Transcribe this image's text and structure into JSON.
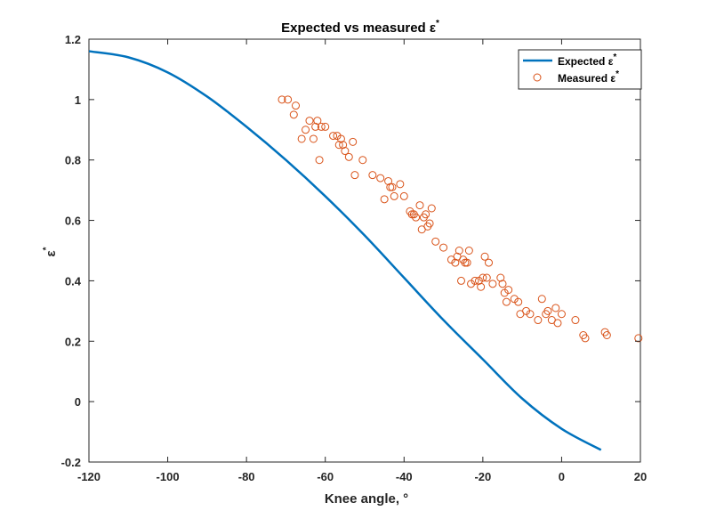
{
  "chart_data": {
    "type": "line+scatter",
    "title": "Expected vs measured ε",
    "title_superscript": "*",
    "xlabel": "Knee angle, °",
    "ylabel": "ε",
    "ylabel_superscript": "*",
    "xlim": [
      -120,
      20
    ],
    "ylim": [
      -0.2,
      1.2
    ],
    "xticks": [
      -120,
      -100,
      -80,
      -60,
      -40,
      -20,
      0,
      20
    ],
    "xtick_labels": [
      "-120",
      "-100",
      "-80",
      "-60",
      "-40",
      "-20",
      "0",
      "20"
    ],
    "yticks": [
      -0.2,
      0,
      0.2,
      0.4,
      0.6,
      0.8,
      1,
      1.2
    ],
    "ytick_labels": [
      "-0.2",
      "0",
      "0.2",
      "0.4",
      "0.6",
      "0.8",
      "1",
      "1.2"
    ],
    "grid": false,
    "legend_position": "top-right",
    "colors": {
      "expected": "#0072BD",
      "measured": "#D95319",
      "axes": "#262626"
    },
    "series": [
      {
        "name": "Expected ε",
        "name_superscript": "*",
        "kind": "line",
        "x": [
          -120,
          -110,
          -100,
          -90,
          -80,
          -70,
          -60,
          -50,
          -40,
          -30,
          -20,
          -10,
          0,
          10
        ],
        "y": [
          1.16,
          1.14,
          1.09,
          1.01,
          0.91,
          0.8,
          0.68,
          0.55,
          0.41,
          0.27,
          0.14,
          0.01,
          -0.09,
          -0.16
        ]
      },
      {
        "name": "Measured ε",
        "name_superscript": "*",
        "kind": "scatter",
        "x": [
          -71,
          -69.5,
          -68,
          -67.5,
          -66,
          -65,
          -64,
          -63,
          -62.5,
          -62,
          -61.5,
          -61,
          -60,
          -58,
          -57,
          -56.5,
          -56,
          -55.5,
          -55,
          -54,
          -53,
          -52.5,
          -50.5,
          -48,
          -46,
          -45,
          -44,
          -43.5,
          -43,
          -42.5,
          -41,
          -40,
          -38.5,
          -38,
          -37.5,
          -37,
          -36,
          -35.5,
          -35,
          -34.5,
          -34,
          -33.5,
          -33,
          -32,
          -30,
          -28,
          -27,
          -26.5,
          -26,
          -25.5,
          -25,
          -24.5,
          -24,
          -23.5,
          -23,
          -22,
          -21,
          -20.5,
          -20,
          -19.5,
          -19,
          -18.5,
          -17.5,
          -15.5,
          -15,
          -14.5,
          -14,
          -13.5,
          -12,
          -11,
          -10.5,
          -9,
          -8,
          -6,
          -5,
          -4,
          -3.5,
          -2.5,
          -1.5,
          -1,
          0,
          3.5,
          5.5,
          6,
          11,
          11.5,
          19.5
        ],
        "y": [
          1.0,
          1.0,
          0.95,
          0.98,
          0.87,
          0.9,
          0.93,
          0.87,
          0.91,
          0.93,
          0.8,
          0.91,
          0.91,
          0.88,
          0.88,
          0.85,
          0.87,
          0.85,
          0.83,
          0.81,
          0.86,
          0.75,
          0.8,
          0.75,
          0.74,
          0.67,
          0.73,
          0.71,
          0.71,
          0.68,
          0.72,
          0.68,
          0.63,
          0.62,
          0.62,
          0.61,
          0.65,
          0.57,
          0.61,
          0.62,
          0.58,
          0.59,
          0.64,
          0.53,
          0.51,
          0.47,
          0.46,
          0.48,
          0.5,
          0.4,
          0.47,
          0.46,
          0.46,
          0.5,
          0.39,
          0.4,
          0.4,
          0.38,
          0.41,
          0.48,
          0.41,
          0.46,
          0.39,
          0.41,
          0.39,
          0.36,
          0.33,
          0.37,
          0.34,
          0.33,
          0.29,
          0.3,
          0.29,
          0.27,
          0.34,
          0.29,
          0.3,
          0.27,
          0.31,
          0.26,
          0.29,
          0.27,
          0.22,
          0.21,
          0.23,
          0.22,
          0.21
        ]
      }
    ]
  }
}
